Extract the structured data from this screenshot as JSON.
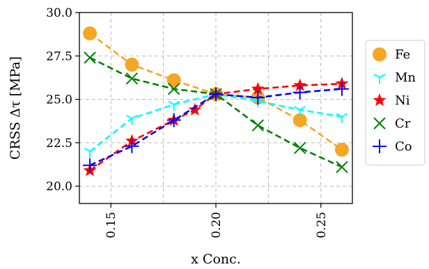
{
  "chart_data": {
    "type": "line",
    "xlabel": "x Conc.",
    "ylabel": "CRSS Δτ [MPa]",
    "xlim": [
      0.135,
      0.265
    ],
    "ylim": [
      19.0,
      30.0
    ],
    "x_ticks": [
      0.15,
      0.2,
      0.25
    ],
    "x_tick_labels": [
      "0.15",
      "0.20",
      "0.25"
    ],
    "y_ticks": [
      20.0,
      22.5,
      25.0,
      27.5,
      30.0
    ],
    "y_tick_labels": [
      "20.0",
      "22.5",
      "25.0",
      "27.5",
      "30.0"
    ],
    "grid": true,
    "legend_position": "outside-right",
    "series": [
      {
        "name": "Fe",
        "color": "#f5a623",
        "marker": "circle",
        "x": [
          0.14,
          0.16,
          0.18,
          0.2,
          0.22,
          0.24,
          0.26
        ],
        "y": [
          28.8,
          27.0,
          26.1,
          25.3,
          25.1,
          23.8,
          22.1
        ]
      },
      {
        "name": "Mn",
        "color": "#00ffff",
        "marker": "tri-down",
        "x": [
          0.14,
          0.16,
          0.18,
          0.2,
          0.22,
          0.24,
          0.26
        ],
        "y": [
          22.0,
          23.9,
          24.7,
          25.3,
          24.9,
          24.4,
          24.0
        ]
      },
      {
        "name": "Ni",
        "color": "#ff0000",
        "marker": "star",
        "x": [
          0.14,
          0.16,
          0.18,
          0.19,
          0.2,
          0.22,
          0.24,
          0.26
        ],
        "y": [
          20.9,
          22.6,
          23.8,
          24.4,
          25.3,
          25.6,
          25.8,
          25.9
        ]
      },
      {
        "name": "Cr",
        "color": "#008000",
        "marker": "x",
        "x": [
          0.14,
          0.16,
          0.18,
          0.2,
          0.22,
          0.24,
          0.26
        ],
        "y": [
          27.4,
          26.2,
          25.6,
          25.3,
          23.5,
          22.2,
          21.1
        ]
      },
      {
        "name": "Co",
        "color": "#0000ff",
        "marker": "plus",
        "x": [
          0.14,
          0.16,
          0.18,
          0.2,
          0.22,
          0.24,
          0.26
        ],
        "y": [
          21.2,
          22.3,
          23.8,
          25.3,
          25.1,
          25.4,
          25.6
        ]
      }
    ]
  }
}
